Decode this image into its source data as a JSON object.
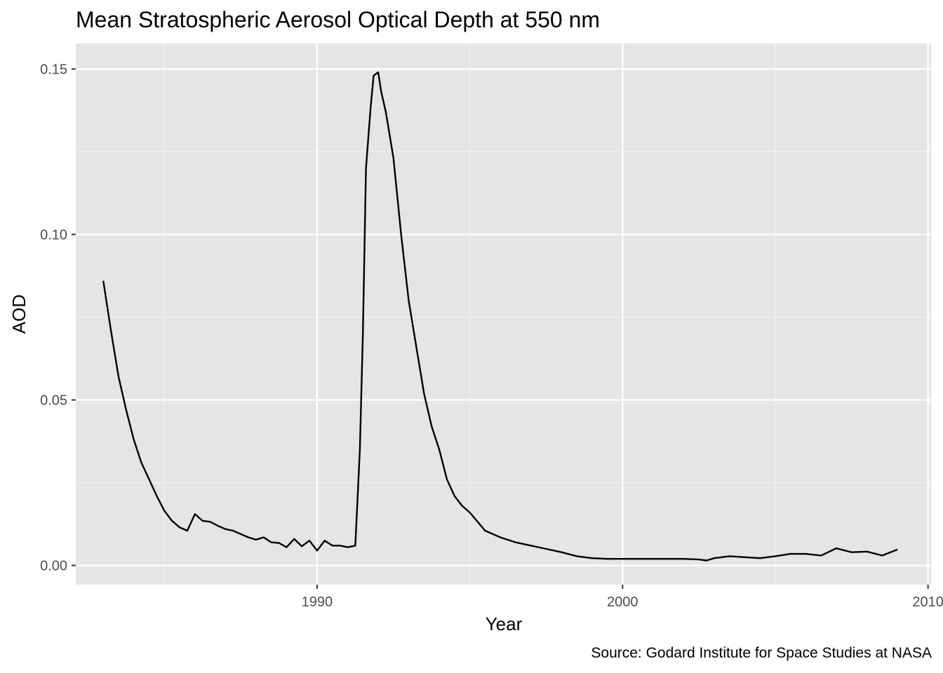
{
  "chart_data": {
    "type": "line",
    "title": "Mean Stratospheric Aerosol Optical Depth at 550 nm",
    "xlabel": "Year",
    "ylabel": "AOD",
    "caption": "Source: Godard Institute for Space Studies at NASA",
    "xlim": [
      1982.1,
      2010.1
    ],
    "ylim": [
      -0.0058,
      0.1577
    ],
    "x_ticks": [
      1990,
      2000,
      2010
    ],
    "x_tick_labels": [
      "1990",
      "2000",
      "2010"
    ],
    "y_ticks": [
      0.0,
      0.05,
      0.1,
      0.15
    ],
    "y_tick_labels": [
      "0.00",
      "0.05",
      "0.10",
      "0.15"
    ],
    "grid": true,
    "background": "#e5e5e5",
    "line_color": "#000000",
    "series": [
      {
        "x": [
          1983.0,
          1983.25,
          1983.5,
          1983.75,
          1984.0,
          1984.25,
          1984.5,
          1984.75,
          1985.0,
          1985.25,
          1985.5,
          1985.75,
          1986.0,
          1986.25,
          1986.5,
          1986.75,
          1987.0,
          1987.25,
          1987.5,
          1987.75,
          1988.0,
          1988.25,
          1988.5,
          1988.75,
          1989.0,
          1989.25,
          1989.5,
          1989.75,
          1990.0,
          1990.25,
          1990.5,
          1990.75,
          1991.0,
          1991.25,
          1991.4,
          1991.5,
          1991.6,
          1991.75,
          1991.85,
          1992.0,
          1992.1,
          1992.25,
          1992.5,
          1992.75,
          1993.0,
          1993.25,
          1993.5,
          1993.75,
          1994.0,
          1994.25,
          1994.5,
          1994.75,
          1995.0,
          1995.5,
          1996.0,
          1996.5,
          1997.0,
          1997.5,
          1998.0,
          1998.5,
          1999.0,
          1999.5,
          2000.0,
          2000.5,
          2001.0,
          2001.5,
          2002.0,
          2002.5,
          2002.75,
          2003.0,
          2003.5,
          2004.0,
          2004.5,
          2005.0,
          2005.5,
          2006.0,
          2006.5,
          2007.0,
          2007.5,
          2008.0,
          2008.5,
          2009.0
        ],
        "values": [
          0.086,
          0.071,
          0.057,
          0.047,
          0.038,
          0.031,
          0.026,
          0.021,
          0.0165,
          0.0135,
          0.0115,
          0.0105,
          0.0155,
          0.0135,
          0.0132,
          0.012,
          0.011,
          0.0105,
          0.0095,
          0.0085,
          0.0078,
          0.0085,
          0.007,
          0.0068,
          0.0055,
          0.008,
          0.0058,
          0.0075,
          0.0045,
          0.0075,
          0.006,
          0.006,
          0.0055,
          0.006,
          0.035,
          0.07,
          0.12,
          0.138,
          0.148,
          0.149,
          0.143,
          0.137,
          0.123,
          0.1,
          0.08,
          0.066,
          0.052,
          0.042,
          0.035,
          0.026,
          0.021,
          0.018,
          0.016,
          0.0105,
          0.0085,
          0.007,
          0.006,
          0.005,
          0.004,
          0.0028,
          0.0022,
          0.002,
          0.002,
          0.002,
          0.002,
          0.002,
          0.002,
          0.0018,
          0.0015,
          0.0022,
          0.0028,
          0.0025,
          0.0022,
          0.0028,
          0.0035,
          0.0035,
          0.003,
          0.0052,
          0.004,
          0.0042,
          0.003,
          0.0048
        ]
      }
    ]
  }
}
